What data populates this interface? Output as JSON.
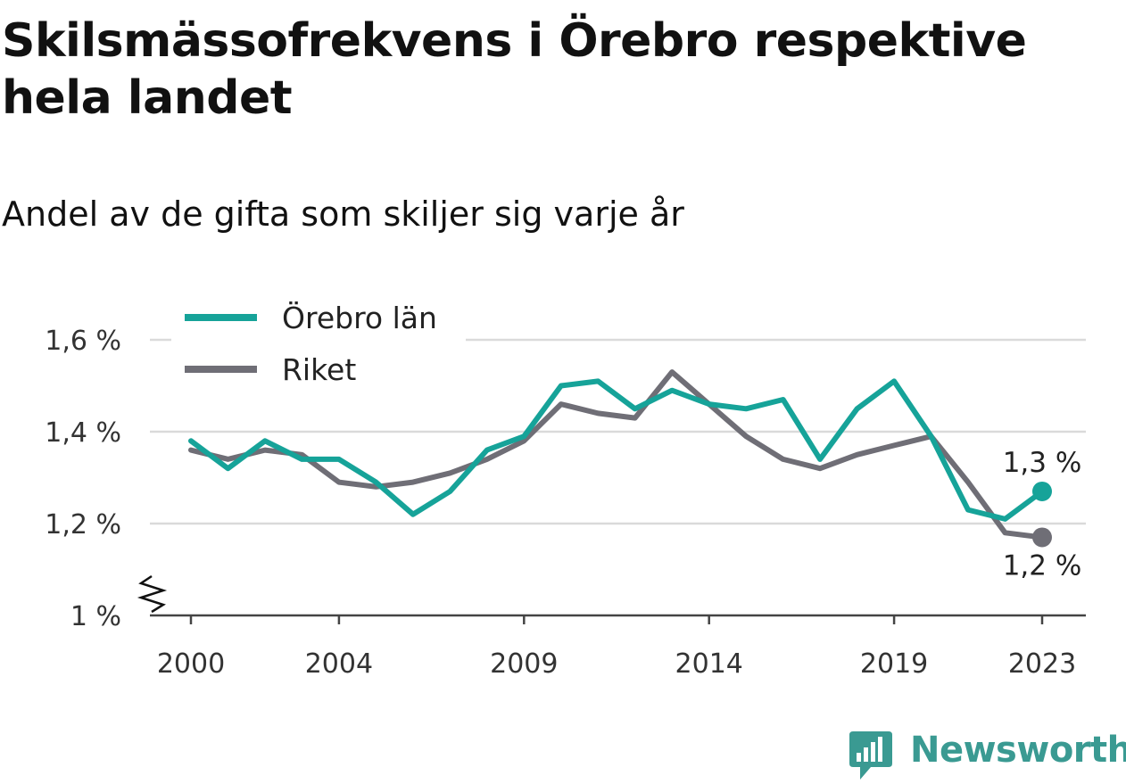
{
  "title": "Skilsmässofrekvens i Örebro respektive hela landet",
  "subtitle": "Andel av de gifta som skiljer sig varje år",
  "brand": {
    "name": "Newsworthy",
    "icon": "newsworthy-logo-icon",
    "color": "#3a9a92"
  },
  "chart_data": {
    "type": "line",
    "x": [
      2000,
      2001,
      2002,
      2003,
      2004,
      2005,
      2006,
      2007,
      2008,
      2009,
      2010,
      2011,
      2012,
      2013,
      2014,
      2015,
      2016,
      2017,
      2018,
      2019,
      2020,
      2021,
      2022,
      2023
    ],
    "series": [
      {
        "name": "Örebro län",
        "color": "#16a399",
        "values": [
          1.38,
          1.32,
          1.38,
          1.34,
          1.34,
          1.29,
          1.22,
          1.27,
          1.36,
          1.39,
          1.5,
          1.51,
          1.45,
          1.49,
          1.46,
          1.45,
          1.47,
          1.34,
          1.45,
          1.51,
          1.39,
          1.23,
          1.21,
          1.27
        ],
        "end_label": "1,3 %"
      },
      {
        "name": "Riket",
        "color": "#6f6e76",
        "values": [
          1.36,
          1.34,
          1.36,
          1.35,
          1.29,
          1.28,
          1.29,
          1.31,
          1.34,
          1.38,
          1.46,
          1.44,
          1.43,
          1.53,
          1.46,
          1.39,
          1.34,
          1.32,
          1.35,
          1.37,
          1.39,
          1.29,
          1.18,
          1.17
        ],
        "end_label": "1,2 %"
      }
    ],
    "x_ticks": [
      2000,
      2004,
      2009,
      2014,
      2019,
      2023
    ],
    "x_tick_labels": [
      "2000",
      "2004",
      "2009",
      "2014",
      "2019",
      "2023"
    ],
    "y_ticks": [
      1.0,
      1.2,
      1.4,
      1.6
    ],
    "y_tick_labels": [
      "1 %",
      "1,2 %",
      "1,4 %",
      "1,6 %"
    ],
    "ylim": [
      1.0,
      1.6
    ],
    "xlim": [
      2000,
      2023
    ],
    "grid": "horizontal",
    "legend_position": "top-left",
    "axis_break": true
  }
}
